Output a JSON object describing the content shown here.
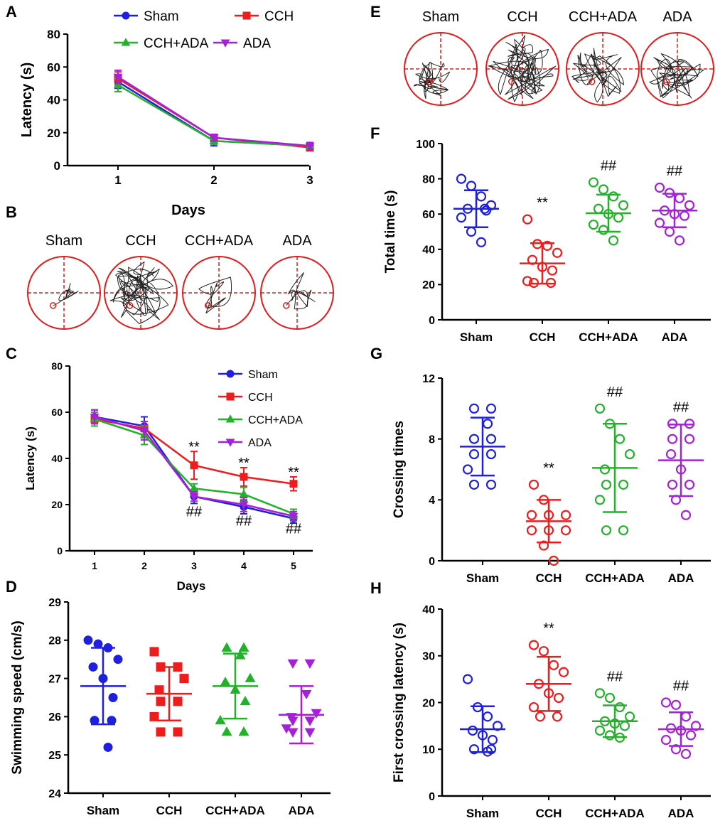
{
  "colors": {
    "sham": "#1f1fe0",
    "cch": "#ee1c1c",
    "cch_ada": "#22b22a",
    "ada": "#a520d8",
    "axis": "#000000",
    "track": "#222222",
    "pool": "#e41a1a"
  },
  "icons": {
    "pool": "circle-with-dashed-quadrant-cross",
    "platform": "small-circle"
  },
  "panel_letters": [
    "A",
    "B",
    "C",
    "D",
    "E",
    "F",
    "G",
    "H"
  ],
  "trace_panels": {
    "B": [
      "Sham",
      "CCH",
      "CCH+ADA",
      "ADA"
    ],
    "E": [
      "Sham",
      "CCH",
      "CCH+ADA",
      "ADA"
    ]
  },
  "chart_data": [
    {
      "id": "A",
      "type": "line",
      "title": "",
      "xlabel": "Days",
      "ylabel": "Latency (s)",
      "x": [
        "1",
        "2",
        "3"
      ],
      "ylim": [
        0,
        80
      ],
      "yticks": [
        0,
        20,
        40,
        60,
        80
      ],
      "legend": "top, two columns",
      "series": [
        {
          "name": "Sham",
          "values": [
            51,
            15,
            12
          ],
          "err": [
            4,
            3,
            2
          ]
        },
        {
          "name": "CCH",
          "values": [
            53,
            17,
            11
          ],
          "err": [
            4,
            2,
            2
          ]
        },
        {
          "name": "CCH+ADA",
          "values": [
            49,
            15,
            12
          ],
          "err": [
            4,
            2,
            2
          ]
        },
        {
          "name": "ADA",
          "values": [
            54,
            17,
            12
          ],
          "err": [
            4,
            2,
            2
          ]
        }
      ]
    },
    {
      "id": "C",
      "type": "line",
      "title": "",
      "xlabel": "Days",
      "ylabel": "Latency (s)",
      "x": [
        "1",
        "2",
        "3",
        "4",
        "5"
      ],
      "ylim": [
        0,
        80
      ],
      "yticks": [
        0,
        20,
        40,
        60,
        80
      ],
      "legend": "top-right",
      "series": [
        {
          "name": "Sham",
          "values": [
            58,
            54,
            23.5,
            19,
            14
          ],
          "err": [
            3,
            4,
            3,
            3,
            2
          ]
        },
        {
          "name": "CCH",
          "values": [
            57,
            53,
            37,
            32,
            29
          ],
          "err": [
            3,
            3,
            6,
            4,
            3
          ]
        },
        {
          "name": "CCH+ADA",
          "values": [
            57,
            50,
            27,
            24.5,
            16
          ],
          "err": [
            3,
            4,
            2,
            3,
            2
          ]
        },
        {
          "name": "ADA",
          "values": [
            58,
            52,
            23.5,
            20,
            15
          ],
          "err": [
            3,
            4,
            2,
            3,
            2
          ]
        }
      ],
      "annotations": [
        {
          "x": "3",
          "y": 43,
          "text": "**"
        },
        {
          "x": "4",
          "y": 36,
          "text": "**"
        },
        {
          "x": "5",
          "y": 32,
          "text": "**"
        },
        {
          "x": "3",
          "y": 15,
          "text": "##"
        },
        {
          "x": "4",
          "y": 11,
          "text": "##"
        },
        {
          "x": "5",
          "y": 7.5,
          "text": "##"
        }
      ]
    },
    {
      "id": "D",
      "type": "scatter",
      "title": "",
      "xlabel": "",
      "ylabel": "Swimming speed (cm/s)",
      "categories": [
        "Sham",
        "CCH",
        "CCH+ADA",
        "ADA"
      ],
      "ylim": [
        24,
        29
      ],
      "yticks": [
        24,
        25,
        26,
        27,
        28,
        29
      ],
      "marker_filled": true,
      "series": [
        {
          "name": "Sham",
          "marker": "circle",
          "points": [
            28.0,
            27.9,
            27.8,
            27.5,
            27.3,
            27.0,
            26.5,
            25.9,
            25.9,
            25.2
          ],
          "mean": 26.8,
          "sd": 1.0
        },
        {
          "name": "CCH",
          "marker": "square",
          "points": [
            27.7,
            27.3,
            27.3,
            27.0,
            26.7,
            26.4,
            26.4,
            26.0,
            25.6,
            25.6
          ],
          "mean": 26.6,
          "sd": 0.7
        },
        {
          "name": "CCH+ADA",
          "marker": "triangle",
          "points": [
            27.8,
            27.8,
            27.6,
            27.0,
            26.9,
            26.7,
            26.4,
            25.9,
            25.6,
            25.6
          ],
          "mean": 26.8,
          "sd": 0.85
        },
        {
          "name": "ADA",
          "marker": "triangle-down",
          "points": [
            27.4,
            27.4,
            26.6,
            26.1,
            26.0,
            25.9,
            25.9,
            25.7,
            25.6,
            25.6
          ],
          "mean": 26.05,
          "sd": 0.75
        }
      ]
    },
    {
      "id": "F",
      "type": "scatter",
      "title": "",
      "xlabel": "",
      "ylabel": "Total time (s)",
      "categories": [
        "Sham",
        "CCH",
        "CCH+ADA",
        "ADA"
      ],
      "ylim": [
        0,
        100
      ],
      "yticks": [
        0,
        20,
        40,
        60,
        80,
        100
      ],
      "marker_filled": false,
      "series": [
        {
          "name": "Sham",
          "marker": "circle",
          "points": [
            80,
            76,
            70,
            65,
            63,
            63,
            62,
            58,
            50,
            44
          ],
          "mean": 63,
          "sd": 10.5,
          "annotation": ""
        },
        {
          "name": "CCH",
          "marker": "circle",
          "points": [
            57,
            43,
            42,
            38,
            34,
            30,
            28,
            22,
            21,
            21
          ],
          "mean": 32,
          "sd": 11.5,
          "annotation": "**"
        },
        {
          "name": "CCH+ADA",
          "marker": "circle",
          "points": [
            78,
            74,
            70,
            65,
            63,
            60,
            58,
            54,
            51,
            45
          ],
          "mean": 60.5,
          "sd": 10.5,
          "annotation": "##"
        },
        {
          "name": "ADA",
          "marker": "circle",
          "points": [
            75,
            72,
            69,
            65,
            62,
            60,
            59,
            55,
            50,
            45
          ],
          "mean": 62,
          "sd": 9.5,
          "annotation": "##"
        }
      ]
    },
    {
      "id": "G",
      "type": "scatter",
      "title": "",
      "xlabel": "",
      "ylabel": "Crossing times",
      "categories": [
        "Sham",
        "CCH",
        "CCH+ADA",
        "ADA"
      ],
      "ylim": [
        0,
        12
      ],
      "yticks": [
        0,
        4,
        8,
        12
      ],
      "marker_filled": false,
      "series": [
        {
          "name": "Sham",
          "marker": "circle",
          "points": [
            10,
            10,
            9,
            8,
            8,
            7,
            7,
            6,
            5,
            5
          ],
          "mean": 7.5,
          "sd": 1.9,
          "annotation": ""
        },
        {
          "name": "CCH",
          "marker": "circle",
          "points": [
            5,
            4,
            3,
            3,
            3,
            2,
            2,
            2,
            1,
            0
          ],
          "mean": 2.6,
          "sd": 1.4,
          "annotation": "**"
        },
        {
          "name": "CCH+ADA",
          "marker": "circle",
          "points": [
            10,
            9,
            8,
            7,
            6,
            5,
            5,
            4,
            2,
            2
          ],
          "mean": 6.1,
          "sd": 2.9,
          "annotation": "##"
        },
        {
          "name": "ADA",
          "marker": "circle",
          "points": [
            9,
            9,
            8,
            8,
            7,
            6,
            5,
            5,
            4,
            3
          ],
          "mean": 6.6,
          "sd": 2.35,
          "annotation": "##"
        }
      ]
    },
    {
      "id": "H",
      "type": "scatter",
      "title": "",
      "xlabel": "",
      "ylabel": "First crossing latency (s)",
      "categories": [
        "Sham",
        "CCH",
        "CCH+ADA",
        "ADA"
      ],
      "ylim": [
        0,
        40
      ],
      "yticks": [
        0,
        10,
        20,
        30,
        40
      ],
      "marker_filled": false,
      "series": [
        {
          "name": "Sham",
          "marker": "circle",
          "points": [
            25,
            19,
            17,
            15,
            14,
            13,
            12,
            10,
            10,
            9.5
          ],
          "mean": 14.3,
          "sd": 4.9,
          "annotation": ""
        },
        {
          "name": "CCH",
          "marker": "circle",
          "points": [
            32.3,
            31,
            28,
            26.5,
            24,
            22,
            21,
            19,
            17,
            17
          ],
          "mean": 24,
          "sd": 5.8,
          "annotation": "**"
        },
        {
          "name": "CCH+ADA",
          "marker": "circle",
          "points": [
            22,
            21,
            19,
            17,
            16,
            15.5,
            15,
            14,
            13,
            12.5
          ],
          "mean": 16,
          "sd": 3.4,
          "annotation": "##"
        },
        {
          "name": "ADA",
          "marker": "circle",
          "points": [
            20,
            19.5,
            17,
            15,
            14.5,
            14,
            13,
            12,
            10,
            9
          ],
          "mean": 14.3,
          "sd": 3.6,
          "annotation": "##"
        }
      ]
    }
  ]
}
